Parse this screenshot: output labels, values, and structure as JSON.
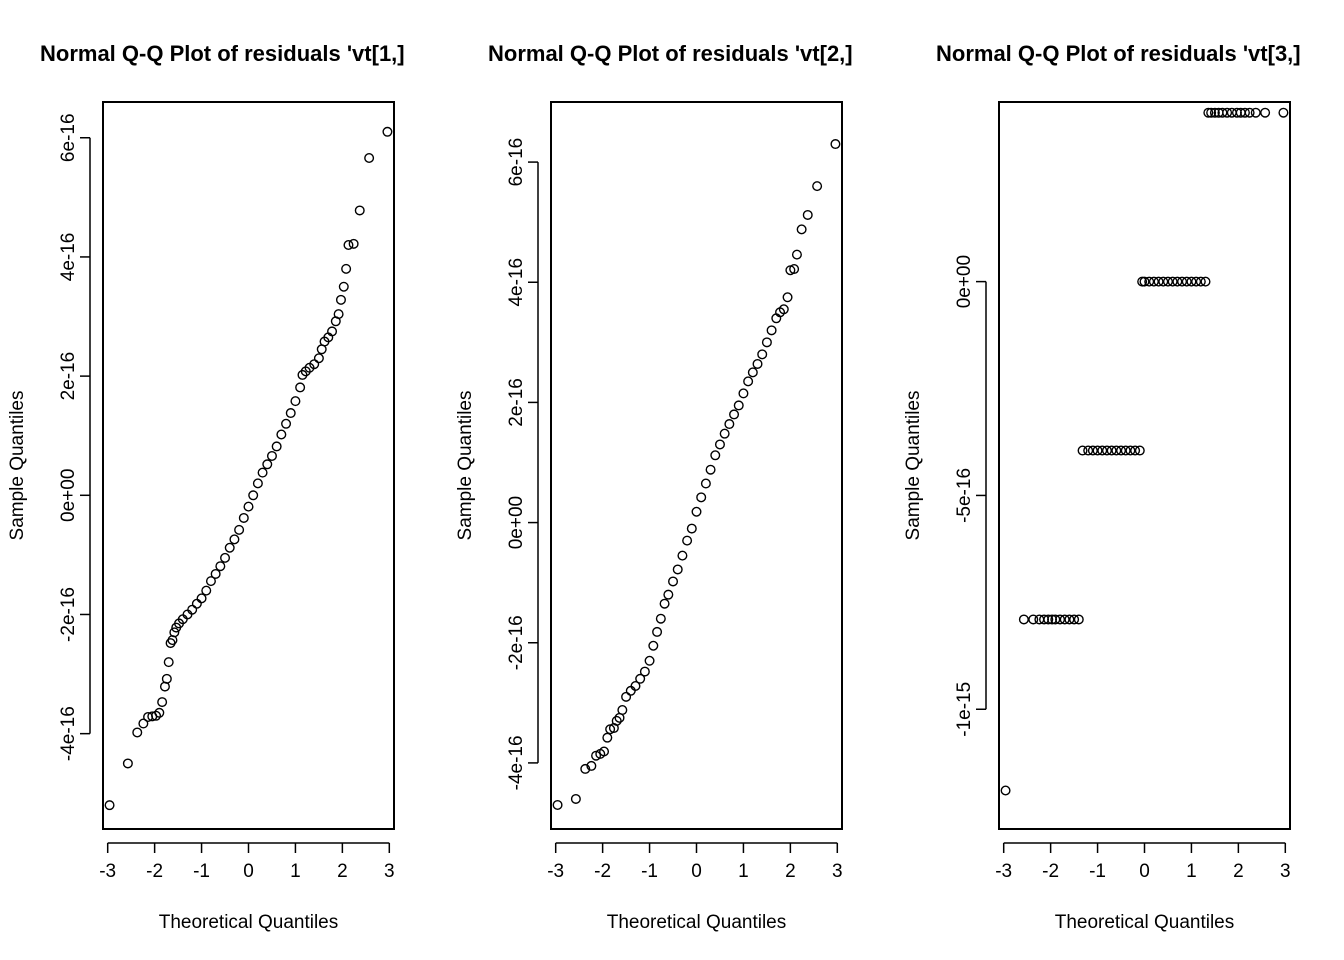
{
  "chart_data": [
    {
      "type": "scatter",
      "title": "Normal Q-Q Plot of residuals 'vt[1,]",
      "xlabel": "Theoretical Quantiles",
      "ylabel": "Sample Quantiles",
      "xlim": [
        -3.1,
        3.1
      ],
      "ylim": [
        -5.6e-16,
        6.6e-16
      ],
      "xticks": [
        -3,
        -2,
        -1,
        0,
        1,
        2,
        3
      ],
      "xtick_labels": [
        "-3",
        "-2",
        "-1",
        "0",
        "1",
        "2",
        "3"
      ],
      "yticks": [
        -4e-16,
        -2e-16,
        0,
        2e-16,
        4e-16,
        6e-16
      ],
      "ytick_labels": [
        "-4e-16",
        "-2e-16",
        "0e+00",
        "2e-16",
        "4e-16",
        "6e-16"
      ],
      "points": [
        [
          -2.96,
          -5.2e-16
        ],
        [
          -2.57,
          -4.5e-16
        ],
        [
          -2.37,
          -3.98e-16
        ],
        [
          -2.24,
          -3.83e-16
        ],
        [
          -2.14,
          -3.72e-16
        ],
        [
          -2.05,
          -3.71e-16
        ],
        [
          -1.97,
          -3.7e-16
        ],
        [
          -1.9,
          -3.65e-16
        ],
        [
          -1.84,
          -3.47e-16
        ],
        [
          -1.78,
          -3.21e-16
        ],
        [
          -1.74,
          -3.08e-16
        ],
        [
          -1.7,
          -2.8e-16
        ],
        [
          -1.66,
          -2.48e-16
        ],
        [
          -1.62,
          -2.43e-16
        ],
        [
          -1.58,
          -2.3e-16
        ],
        [
          -1.54,
          -2.22e-16
        ],
        [
          -1.48,
          -2.15e-16
        ],
        [
          -1.4,
          -2.08e-16
        ],
        [
          -1.3,
          -2e-16
        ],
        [
          -1.2,
          -1.92e-16
        ],
        [
          -1.1,
          -1.82e-16
        ],
        [
          -1.0,
          -1.73e-16
        ],
        [
          -0.9,
          -1.6e-16
        ],
        [
          -0.8,
          -1.44e-16
        ],
        [
          -0.7,
          -1.32e-16
        ],
        [
          -0.6,
          -1.19e-16
        ],
        [
          -0.5,
          -1.05e-16
        ],
        [
          -0.4,
          -8.8e-17
        ],
        [
          -0.3,
          -7.4e-17
        ],
        [
          -0.2,
          -5.8e-17
        ],
        [
          -0.1,
          -3.8e-17
        ],
        [
          0.0,
          -1.9e-17
        ],
        [
          0.1,
          0.0
        ],
        [
          0.2,
          2e-17
        ],
        [
          0.3,
          3.8e-17
        ],
        [
          0.4,
          5.2e-17
        ],
        [
          0.5,
          6.6e-17
        ],
        [
          0.6,
          8.2e-17
        ],
        [
          0.7,
          1.02e-16
        ],
        [
          0.8,
          1.2e-16
        ],
        [
          0.9,
          1.38e-16
        ],
        [
          1.0,
          1.58e-16
        ],
        [
          1.1,
          1.81e-16
        ],
        [
          1.15,
          2.02e-16
        ],
        [
          1.22,
          2.08e-16
        ],
        [
          1.3,
          2.14e-16
        ],
        [
          1.4,
          2.2e-16
        ],
        [
          1.5,
          2.3e-16
        ],
        [
          1.56,
          2.45e-16
        ],
        [
          1.62,
          2.58e-16
        ],
        [
          1.7,
          2.65e-16
        ],
        [
          1.78,
          2.75e-16
        ],
        [
          1.86,
          2.92e-16
        ],
        [
          1.92,
          3.04e-16
        ],
        [
          1.97,
          3.28e-16
        ],
        [
          2.03,
          3.5e-16
        ],
        [
          2.08,
          3.8e-16
        ],
        [
          2.13,
          4.2e-16
        ],
        [
          2.24,
          4.22e-16
        ],
        [
          2.37,
          4.78e-16
        ],
        [
          2.57,
          5.66e-16
        ],
        [
          2.96,
          6.1e-16
        ]
      ]
    },
    {
      "type": "scatter",
      "title": "Normal Q-Q Plot of residuals 'vt[2,]",
      "xlabel": "Theoretical Quantiles",
      "ylabel": "Sample Quantiles",
      "xlim": [
        -3.1,
        3.1
      ],
      "ylim": [
        -5.1e-16,
        7e-16
      ],
      "xticks": [
        -3,
        -2,
        -1,
        0,
        1,
        2,
        3
      ],
      "xtick_labels": [
        "-3",
        "-2",
        "-1",
        "0",
        "1",
        "2",
        "3"
      ],
      "yticks": [
        -4e-16,
        -2e-16,
        0,
        2e-16,
        4e-16,
        6e-16
      ],
      "ytick_labels": [
        "-4e-16",
        "-2e-16",
        "0e+00",
        "2e-16",
        "4e-16",
        "6e-16"
      ],
      "points": [
        [
          -2.96,
          -4.7e-16
        ],
        [
          -2.57,
          -4.6e-16
        ],
        [
          -2.37,
          -4.1e-16
        ],
        [
          -2.24,
          -4.05e-16
        ],
        [
          -2.14,
          -3.88e-16
        ],
        [
          -2.05,
          -3.85e-16
        ],
        [
          -1.97,
          -3.81e-16
        ],
        [
          -1.9,
          -3.58e-16
        ],
        [
          -1.84,
          -3.44e-16
        ],
        [
          -1.76,
          -3.42e-16
        ],
        [
          -1.7,
          -3.3e-16
        ],
        [
          -1.64,
          -3.25e-16
        ],
        [
          -1.58,
          -3.12e-16
        ],
        [
          -1.5,
          -2.9e-16
        ],
        [
          -1.4,
          -2.8e-16
        ],
        [
          -1.3,
          -2.72e-16
        ],
        [
          -1.2,
          -2.6e-16
        ],
        [
          -1.1,
          -2.48e-16
        ],
        [
          -1.0,
          -2.3e-16
        ],
        [
          -0.92,
          -2.05e-16
        ],
        [
          -0.84,
          -1.82e-16
        ],
        [
          -0.76,
          -1.6e-16
        ],
        [
          -0.68,
          -1.35e-16
        ],
        [
          -0.6,
          -1.2e-16
        ],
        [
          -0.5,
          -9.8e-17
        ],
        [
          -0.4,
          -7.8e-17
        ],
        [
          -0.3,
          -5.5e-17
        ],
        [
          -0.2,
          -3e-17
        ],
        [
          -0.1,
          -1e-17
        ],
        [
          0.0,
          1.8e-17
        ],
        [
          0.1,
          4.2e-17
        ],
        [
          0.2,
          6.5e-17
        ],
        [
          0.3,
          8.8e-17
        ],
        [
          0.4,
          1.12e-16
        ],
        [
          0.5,
          1.3e-16
        ],
        [
          0.6,
          1.48e-16
        ],
        [
          0.7,
          1.64e-16
        ],
        [
          0.8,
          1.8e-16
        ],
        [
          0.9,
          1.95e-16
        ],
        [
          1.0,
          2.15e-16
        ],
        [
          1.1,
          2.35e-16
        ],
        [
          1.2,
          2.5e-16
        ],
        [
          1.3,
          2.64e-16
        ],
        [
          1.4,
          2.8e-16
        ],
        [
          1.5,
          3e-16
        ],
        [
          1.6,
          3.2e-16
        ],
        [
          1.7,
          3.4e-16
        ],
        [
          1.78,
          3.5e-16
        ],
        [
          1.86,
          3.55e-16
        ],
        [
          1.94,
          3.75e-16
        ],
        [
          2.0,
          4.2e-16
        ],
        [
          2.08,
          4.22e-16
        ],
        [
          2.14,
          4.46e-16
        ],
        [
          2.24,
          4.88e-16
        ],
        [
          2.37,
          5.12e-16
        ],
        [
          2.57,
          5.6e-16
        ],
        [
          2.96,
          6.3e-16
        ]
      ]
    },
    {
      "type": "scatter",
      "title": "Normal Q-Q Plot of residuals 'vt[3,]",
      "xlabel": "Theoretical Quantiles",
      "ylabel": "Sample Quantiles",
      "xlim": [
        -3.1,
        3.1
      ],
      "ylim": [
        -1.28e-15,
        4.2e-16
      ],
      "xticks": [
        -3,
        -2,
        -1,
        0,
        1,
        2,
        3
      ],
      "xtick_labels": [
        "-3",
        "-2",
        "-1",
        "0",
        "1",
        "2",
        "3"
      ],
      "yticks": [
        -1e-15,
        -5e-16,
        0
      ],
      "ytick_labels": [
        "-1e-15",
        "-5e-16",
        "0e+00"
      ],
      "points": [
        [
          -2.96,
          -1.19e-15
        ],
        [
          -2.57,
          -7.9e-16
        ],
        [
          -2.37,
          -7.9e-16
        ],
        [
          -2.24,
          -7.9e-16
        ],
        [
          -2.14,
          -7.9e-16
        ],
        [
          -2.05,
          -7.9e-16
        ],
        [
          -1.97,
          -7.9e-16
        ],
        [
          -1.9,
          -7.9e-16
        ],
        [
          -1.8,
          -7.9e-16
        ],
        [
          -1.7,
          -7.9e-16
        ],
        [
          -1.6,
          -7.9e-16
        ],
        [
          -1.5,
          -7.9e-16
        ],
        [
          -1.4,
          -7.9e-16
        ],
        [
          -1.32,
          -3.95e-16
        ],
        [
          -1.2,
          -3.95e-16
        ],
        [
          -1.1,
          -3.95e-16
        ],
        [
          -1.0,
          -3.95e-16
        ],
        [
          -0.9,
          -3.95e-16
        ],
        [
          -0.8,
          -3.95e-16
        ],
        [
          -0.7,
          -3.95e-16
        ],
        [
          -0.6,
          -3.95e-16
        ],
        [
          -0.5,
          -3.95e-16
        ],
        [
          -0.4,
          -3.95e-16
        ],
        [
          -0.3,
          -3.95e-16
        ],
        [
          -0.2,
          -3.95e-16
        ],
        [
          -0.1,
          -3.95e-16
        ],
        [
          -0.05,
          0.0
        ],
        [
          0.0,
          0.0
        ],
        [
          0.1,
          0.0
        ],
        [
          0.2,
          0.0
        ],
        [
          0.3,
          0.0
        ],
        [
          0.4,
          0.0
        ],
        [
          0.5,
          0.0
        ],
        [
          0.6,
          0.0
        ],
        [
          0.7,
          0.0
        ],
        [
          0.8,
          0.0
        ],
        [
          0.9,
          0.0
        ],
        [
          1.0,
          0.0
        ],
        [
          1.1,
          0.0
        ],
        [
          1.2,
          0.0
        ],
        [
          1.3,
          0.0
        ],
        [
          1.36,
          3.95e-16
        ],
        [
          1.42,
          3.95e-16
        ],
        [
          1.5,
          3.95e-16
        ],
        [
          1.58,
          3.95e-16
        ],
        [
          1.66,
          3.95e-16
        ],
        [
          1.76,
          3.95e-16
        ],
        [
          1.86,
          3.95e-16
        ],
        [
          1.97,
          3.95e-16
        ],
        [
          2.05,
          3.95e-16
        ],
        [
          2.14,
          3.95e-16
        ],
        [
          2.24,
          3.95e-16
        ],
        [
          2.37,
          3.95e-16
        ],
        [
          2.57,
          3.95e-16
        ],
        [
          2.96,
          3.95e-16
        ]
      ]
    }
  ]
}
